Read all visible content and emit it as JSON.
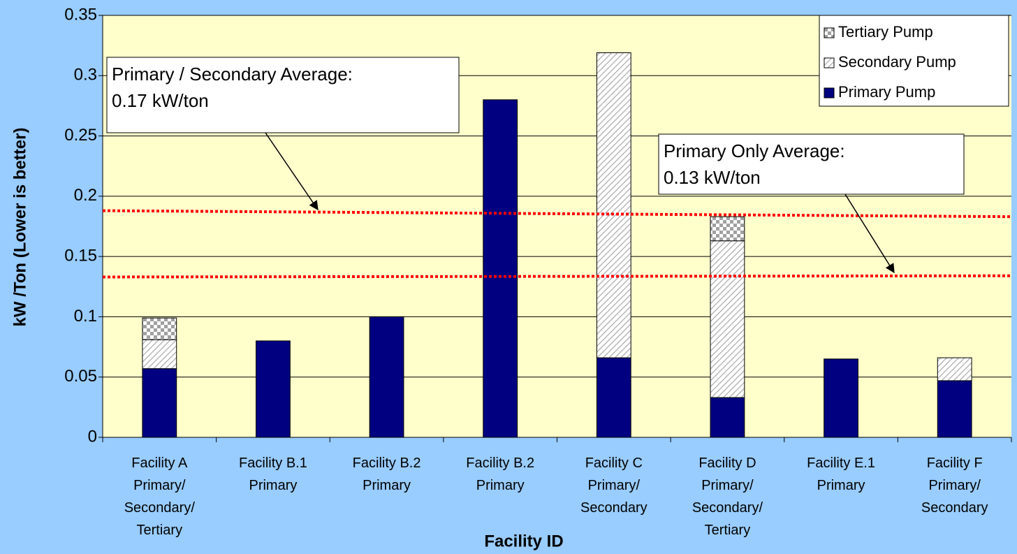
{
  "chart_data": {
    "type": "stacked_bar",
    "x_label": "Facility ID",
    "y_label": "kW /Ton (Lower is better)",
    "categories": [
      [
        "Facility A",
        "Primary/",
        "Secondary/",
        "Tertiary"
      ],
      [
        "Facility B.1",
        "Primary"
      ],
      [
        "Facility B.2",
        "Primary"
      ],
      [
        "Facility B.2",
        "Primary"
      ],
      [
        "Facility C",
        "Primary/",
        "Secondary"
      ],
      [
        "Facility D",
        "Primary/",
        "Secondary/",
        "Tertiary"
      ],
      [
        "Facility E.1",
        "Primary"
      ],
      [
        "Facility F",
        "Primary/",
        "Secondary"
      ]
    ],
    "series": [
      {
        "name": "Primary Pump",
        "color": "#000080",
        "values": [
          0.057,
          0.08,
          0.1,
          0.28,
          0.066,
          0.033,
          0.065,
          0.047
        ]
      },
      {
        "name": "Secondary Pump",
        "color": "#b0b0b0",
        "pattern": "hatch",
        "values": [
          0.024,
          null,
          null,
          null,
          0.253,
          0.13,
          null,
          0.019
        ]
      },
      {
        "name": "Tertiary Pump",
        "color": "#a0a0a0",
        "pattern": "checker",
        "values": [
          0.018,
          null,
          null,
          null,
          null,
          0.02,
          null,
          null
        ]
      }
    ],
    "reference_lines": [
      {
        "color": "#ff0000",
        "value_start": 0.188,
        "value_end": 0.183
      },
      {
        "color": "#ff0000",
        "value_start": 0.133,
        "value_end": 0.134
      }
    ],
    "annotations": [
      {
        "lines": [
          "Primary / Secondary Average:",
          "0.17 kW/ton"
        ]
      },
      {
        "lines": [
          "Primary Only Average:",
          "0.13 kW/ton"
        ]
      }
    ],
    "ylim": [
      0,
      0.35
    ],
    "yticks": [
      0,
      0.05,
      0.1,
      0.15,
      0.2,
      0.25,
      0.3,
      0.35
    ],
    "grid": true,
    "legend": "top-right",
    "background": "#99ccff",
    "plot_background": "#ffffcc"
  }
}
